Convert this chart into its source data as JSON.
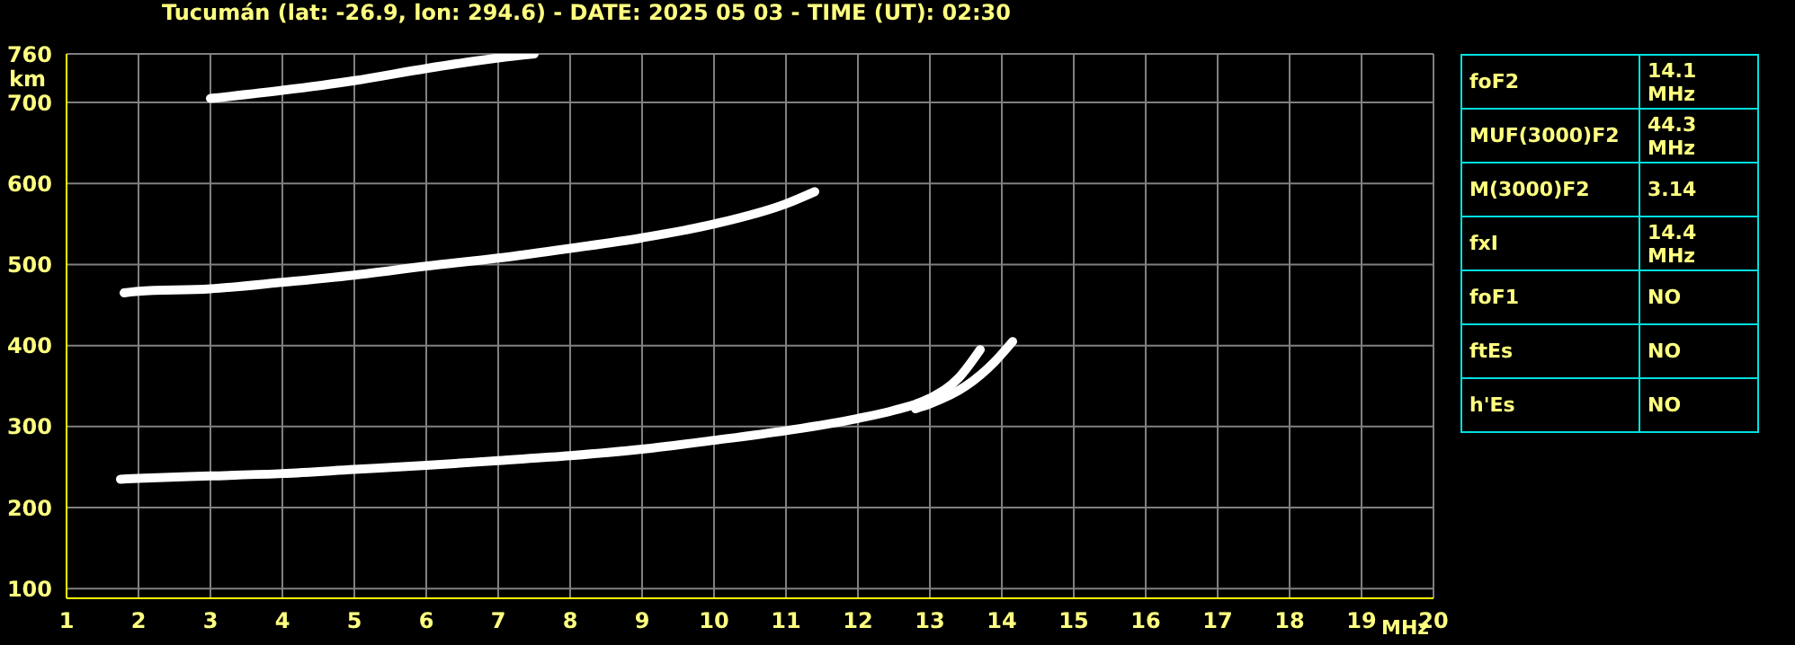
{
  "chart_data": {
    "type": "line",
    "title": "Tucumán (lat: -26.9, lon: 294.6) - DATE: 2025 05 03 - TIME (UT): 02:30",
    "xlabel": "MHz",
    "ylabel": "km",
    "xlim": [
      1,
      20
    ],
    "xticks": [
      1,
      2,
      3,
      4,
      5,
      6,
      7,
      8,
      9,
      10,
      11,
      12,
      13,
      14,
      15,
      16,
      17,
      18,
      19,
      20
    ],
    "ylim": [
      88,
      760
    ],
    "yticks": [
      100,
      200,
      300,
      400,
      500,
      600,
      700,
      760
    ],
    "grid": true,
    "marker": "none",
    "line_style": "solid",
    "series": [
      {
        "color": "#ffffff",
        "x": [
          1.75,
          2,
          3,
          4,
          5,
          6,
          7,
          8,
          9,
          10,
          11,
          12,
          12.5,
          13,
          13.4,
          13.7
        ],
        "values": [
          235,
          236,
          239,
          242,
          247,
          252,
          258,
          264,
          272,
          283,
          295,
          310,
          320,
          335,
          360,
          395
        ]
      },
      {
        "color": "#ffffff",
        "x": [
          12.8,
          13,
          13.5,
          13.9,
          14.15
        ],
        "values": [
          322,
          328,
          350,
          380,
          405
        ]
      },
      {
        "color": "#ffffff",
        "x": [
          1.8,
          2,
          3,
          4,
          5,
          6,
          7,
          8,
          9,
          10,
          11,
          11.4
        ],
        "values": [
          465,
          467,
          470,
          478,
          487,
          498,
          508,
          520,
          533,
          550,
          575,
          590
        ]
      },
      {
        "color": "#ffffff",
        "x": [
          3,
          4,
          5,
          6,
          7,
          7.5
        ],
        "values": [
          705,
          715,
          727,
          742,
          755,
          760
        ]
      }
    ],
    "annotations": [
      "foF2",
      "14.1 MHz",
      "MUF(3000)F2",
      "44.3 MHz",
      "M(3000)F2",
      "3.14",
      "fxI",
      "14.4 MHz",
      "foF1",
      "NO",
      "ftEs",
      "NO",
      "h'Es",
      "NO"
    ]
  }
}
